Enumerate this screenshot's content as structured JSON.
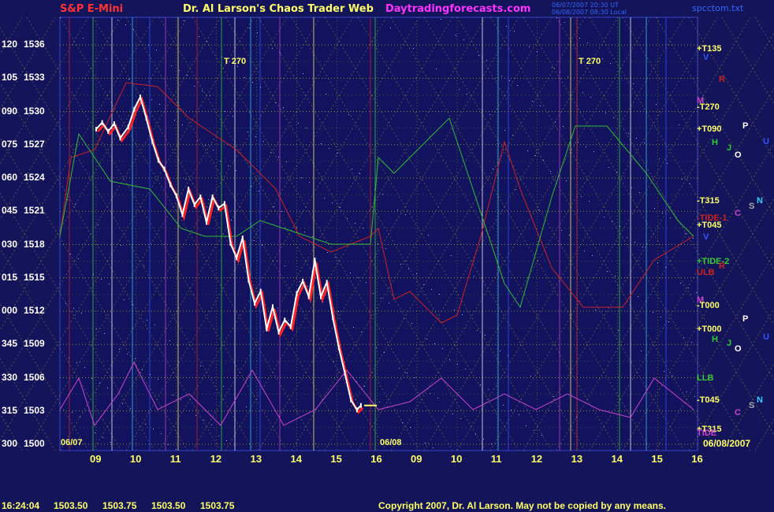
{
  "header": {
    "symbol": "S&P E-Mini",
    "title": "Dr. Al Larson's Chaos Trader Web",
    "site": "Daytradingforecasts.com",
    "stamp1": "06/07/2007 20:30 UT",
    "stamp2": "06/08/2007 08:30 Local",
    "file": "spcctom.txt"
  },
  "colors": {
    "background": "#14145a",
    "price": "#ffffff",
    "grid": "#cccc33",
    "tide": "#cc2222",
    "green": "#33bb33",
    "magenta": "#cc44cc"
  },
  "chart_data": {
    "type": "line",
    "y_ticks": [
      {
        "angle": "120",
        "price": "1536"
      },
      {
        "angle": "105",
        "price": "1533"
      },
      {
        "angle": "090",
        "price": "1530"
      },
      {
        "angle": "075",
        "price": "1527"
      },
      {
        "angle": "060",
        "price": "1524"
      },
      {
        "angle": "045",
        "price": "1521"
      },
      {
        "angle": "030",
        "price": "1518"
      },
      {
        "angle": "015",
        "price": "1515"
      },
      {
        "angle": "000",
        "price": "1512"
      },
      {
        "angle": "345",
        "price": "1509"
      },
      {
        "angle": "330",
        "price": "1506"
      },
      {
        "angle": "315",
        "price": "1503"
      },
      {
        "angle": "300",
        "price": "1500"
      }
    ],
    "ylim": [
      1500,
      1536
    ],
    "x_ticks": [
      "09",
      "10",
      "11",
      "12",
      "13",
      "14",
      "15",
      "16",
      "09",
      "10",
      "11",
      "12",
      "13",
      "14",
      "15",
      "16"
    ],
    "x_hours": [
      9,
      10,
      11,
      12,
      13,
      14,
      15,
      16,
      9,
      10,
      11,
      12,
      13,
      14,
      15,
      16
    ],
    "date_left": "06/07",
    "date_mid": "06/08",
    "date_right": "06/08/2007",
    "right_labels": [
      {
        "text": "+T135",
        "color": "#ffff66",
        "price": 1535.6
      },
      {
        "text": "V",
        "color": "#3355ff",
        "price": 1534.8
      },
      {
        "text": "R",
        "color": "#cc2222",
        "price": 1532.8
      },
      {
        "text": "M",
        "color": "#cc44cc",
        "price": 1530.9
      },
      {
        "text": "-T270",
        "color": "#ffff66",
        "price": 1530.3
      },
      {
        "text": "P",
        "color": "#ffffff",
        "price": 1528.6
      },
      {
        "text": "+T090",
        "color": "#ffff66",
        "price": 1528.3
      },
      {
        "text": "U",
        "color": "#3355ff",
        "price": 1527.2
      },
      {
        "text": "H",
        "color": "#33cc33",
        "price": 1527.1
      },
      {
        "text": "J",
        "color": "#33cc33",
        "price": 1526.6
      },
      {
        "text": "O",
        "color": "#ffffff",
        "price": 1526.0
      },
      {
        "text": "-T315",
        "color": "#ffff66",
        "price": 1521.9
      },
      {
        "text": "N",
        "color": "#33ccff",
        "price": 1521.9
      },
      {
        "text": "S",
        "color": "#aaaaaa",
        "price": 1521.4
      },
      {
        "text": "C",
        "color": "#cc44cc",
        "price": 1520.7
      },
      {
        "text": "-TIDE-1",
        "color": "#cc2222",
        "price": 1520.3
      },
      {
        "text": "+T045",
        "color": "#ffff66",
        "price": 1519.7
      },
      {
        "text": "V",
        "color": "#3355ff",
        "price": 1518.6
      },
      {
        "text": "+TIDE-2",
        "color": "#33cc33",
        "price": 1516.4
      },
      {
        "text": "R",
        "color": "#cc2222",
        "price": 1516.0
      },
      {
        "text": "ULB",
        "color": "#cc2222",
        "price": 1515.4
      },
      {
        "text": "M",
        "color": "#cc44cc",
        "price": 1512.9
      },
      {
        "text": "-T000",
        "color": "#ffff66",
        "price": 1512.4
      },
      {
        "text": "P",
        "color": "#ffffff",
        "price": 1511.2
      },
      {
        "text": "+T000",
        "color": "#ffff66",
        "price": 1510.3
      },
      {
        "text": "U",
        "color": "#3355ff",
        "price": 1509.6
      },
      {
        "text": "H",
        "color": "#33cc33",
        "price": 1509.4
      },
      {
        "text": "J",
        "color": "#33cc33",
        "price": 1509.0
      },
      {
        "text": "O",
        "color": "#ffffff",
        "price": 1508.5
      },
      {
        "text": "LLB",
        "color": "#33cc33",
        "price": 1505.9
      },
      {
        "text": "-T045",
        "color": "#ffff66",
        "price": 1503.9
      },
      {
        "text": "N",
        "color": "#33ccff",
        "price": 1503.9
      },
      {
        "text": "S",
        "color": "#aaaaaa",
        "price": 1503.4
      },
      {
        "text": "C",
        "color": "#cc44cc",
        "price": 1502.8
      },
      {
        "text": "+T315",
        "color": "#ffff66",
        "price": 1501.3
      },
      {
        "text": "TIDE",
        "color": "#cc44cc",
        "price": 1500.9
      }
    ],
    "time_labels": [
      {
        "text": "T 270",
        "hour": 11.9,
        "price": 1535.3
      },
      {
        "text": "T 270",
        "hour": 12.9,
        "price": 1535.3
      }
    ],
    "price_series": [
      {
        "day": 0,
        "hour": 9.0,
        "p": 1528.4
      },
      {
        "day": 0,
        "hour": 9.15,
        "p": 1529.0
      },
      {
        "day": 0,
        "hour": 9.3,
        "p": 1528.2
      },
      {
        "day": 0,
        "hour": 9.45,
        "p": 1528.9
      },
      {
        "day": 0,
        "hour": 9.6,
        "p": 1527.6
      },
      {
        "day": 0,
        "hour": 9.8,
        "p": 1528.6
      },
      {
        "day": 0,
        "hour": 9.95,
        "p": 1530.2
      },
      {
        "day": 0,
        "hour": 10.1,
        "p": 1531.3
      },
      {
        "day": 0,
        "hour": 10.25,
        "p": 1529.4
      },
      {
        "day": 0,
        "hour": 10.4,
        "p": 1527.3
      },
      {
        "day": 0,
        "hour": 10.55,
        "p": 1525.6
      },
      {
        "day": 0,
        "hour": 10.7,
        "p": 1524.8
      },
      {
        "day": 0,
        "hour": 10.85,
        "p": 1523.4
      },
      {
        "day": 0,
        "hour": 11.0,
        "p": 1522.4
      },
      {
        "day": 0,
        "hour": 11.15,
        "p": 1520.7
      },
      {
        "day": 0,
        "hour": 11.3,
        "p": 1523.0
      },
      {
        "day": 0,
        "hour": 11.45,
        "p": 1521.6
      },
      {
        "day": 0,
        "hour": 11.6,
        "p": 1522.3
      },
      {
        "day": 0,
        "hour": 11.75,
        "p": 1520.0
      },
      {
        "day": 0,
        "hour": 11.9,
        "p": 1522.3
      },
      {
        "day": 0,
        "hour": 12.05,
        "p": 1521.3
      },
      {
        "day": 0,
        "hour": 12.2,
        "p": 1521.7
      },
      {
        "day": 0,
        "hour": 12.35,
        "p": 1518.1
      },
      {
        "day": 0,
        "hour": 12.5,
        "p": 1516.8
      },
      {
        "day": 0,
        "hour": 12.65,
        "p": 1518.6
      },
      {
        "day": 0,
        "hour": 12.8,
        "p": 1514.8
      },
      {
        "day": 0,
        "hour": 12.95,
        "p": 1512.7
      },
      {
        "day": 0,
        "hour": 13.1,
        "p": 1513.8
      },
      {
        "day": 0,
        "hour": 13.25,
        "p": 1510.4
      },
      {
        "day": 0,
        "hour": 13.4,
        "p": 1512.4
      },
      {
        "day": 0,
        "hour": 13.55,
        "p": 1510.1
      },
      {
        "day": 0,
        "hour": 13.7,
        "p": 1511.2
      },
      {
        "day": 0,
        "hour": 13.85,
        "p": 1510.6
      },
      {
        "day": 0,
        "hour": 14.0,
        "p": 1513.6
      },
      {
        "day": 0,
        "hour": 14.15,
        "p": 1514.7
      },
      {
        "day": 0,
        "hour": 14.3,
        "p": 1513.3
      },
      {
        "day": 0,
        "hour": 14.45,
        "p": 1516.6
      },
      {
        "day": 0,
        "hour": 14.6,
        "p": 1513.3
      },
      {
        "day": 0,
        "hour": 14.75,
        "p": 1514.6
      },
      {
        "day": 0,
        "hour": 14.9,
        "p": 1511.4
      },
      {
        "day": 0,
        "hour": 15.05,
        "p": 1508.7
      },
      {
        "day": 0,
        "hour": 15.2,
        "p": 1506.4
      },
      {
        "day": 0,
        "hour": 15.35,
        "p": 1504.0
      },
      {
        "day": 0,
        "hour": 15.5,
        "p": 1503.1
      },
      {
        "day": 0,
        "hour": 15.6,
        "p": 1503.5
      }
    ],
    "status": {
      "time": "16:24:04",
      "values": [
        "1503.50",
        "1503.75",
        "1503.50",
        "1503.75"
      ]
    },
    "copyright": "Copyright 2007, Dr. Al Larson. May not be copied by any means."
  }
}
